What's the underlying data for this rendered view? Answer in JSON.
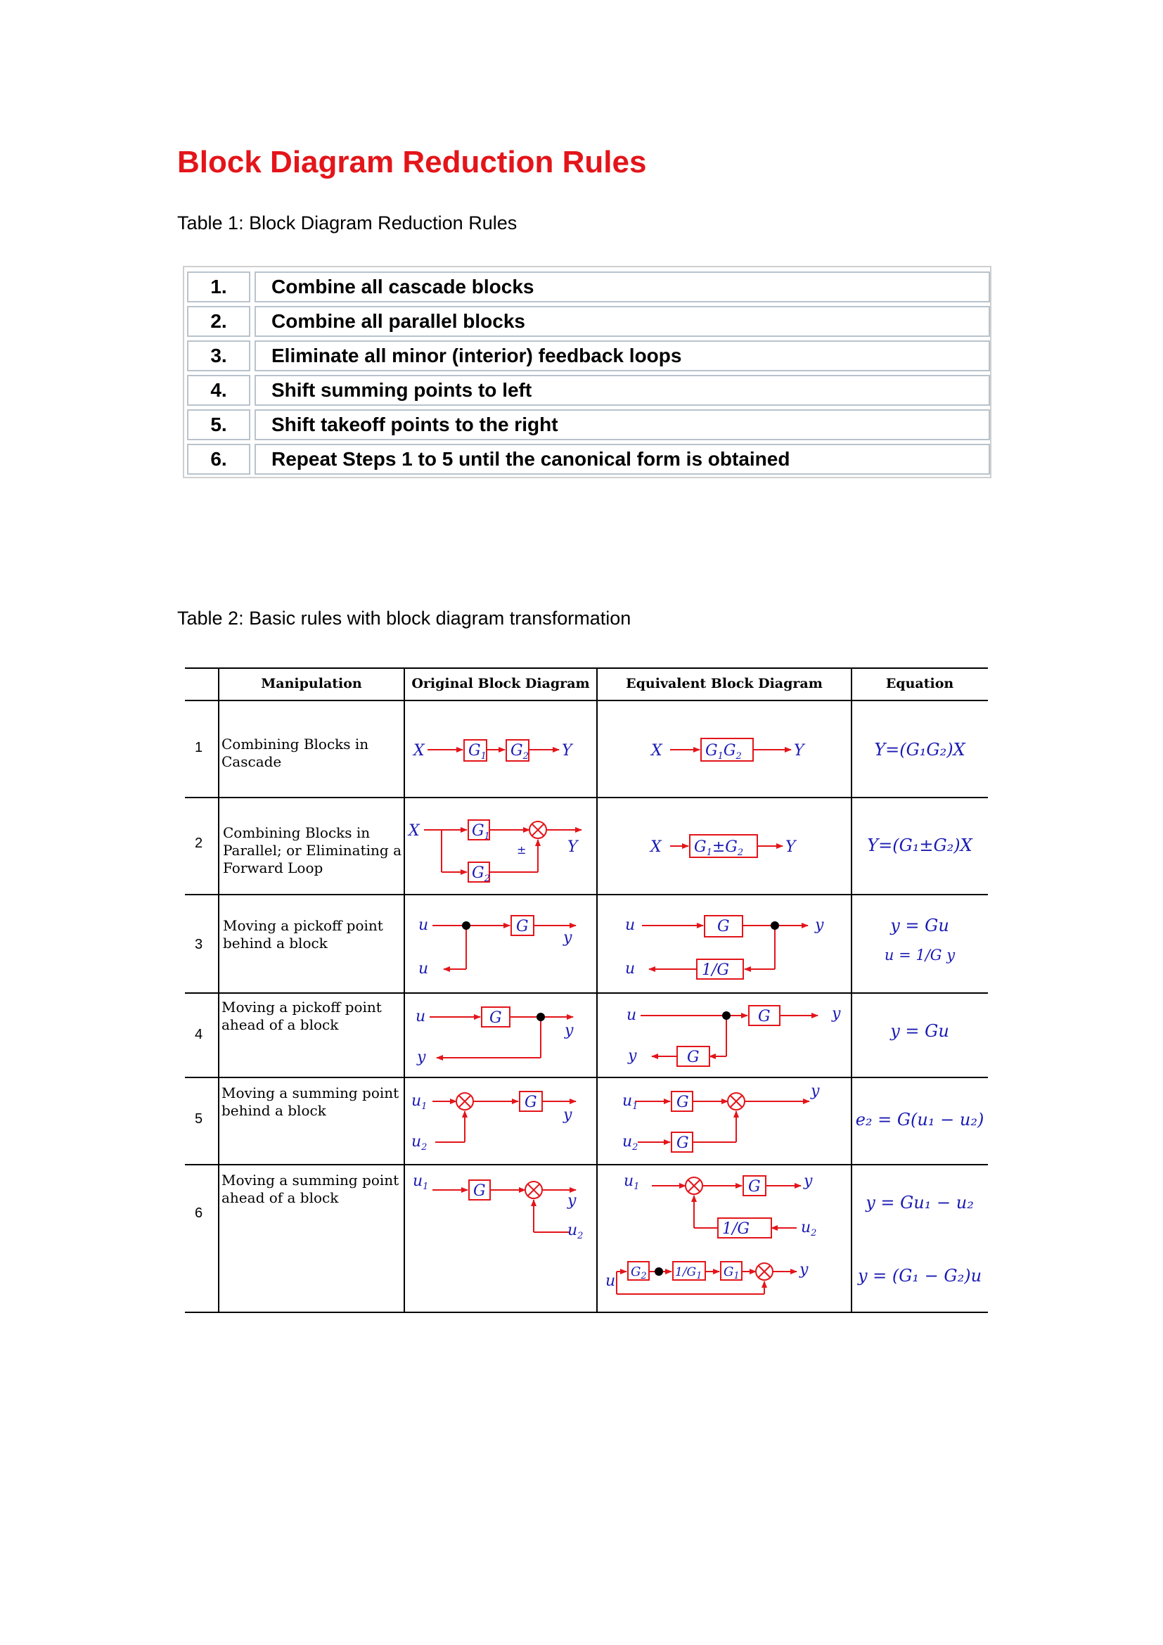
{
  "title": "Block Diagram Reduction Rules",
  "table1": {
    "caption": "Table 1: Block Diagram Reduction Rules",
    "rows": [
      {
        "num": "1.",
        "text": "Combine all cascade blocks"
      },
      {
        "num": "2.",
        "text": "Combine all parallel blocks"
      },
      {
        "num": "3.",
        "text": "Eliminate all minor (interior) feedback loops"
      },
      {
        "num": "4.",
        "text": "Shift summing points to left"
      },
      {
        "num": "5.",
        "text": "Shift takeoff points to the right"
      },
      {
        "num": "6.",
        "text": "Repeat Steps 1 to 5 until the canonical form is obtained"
      }
    ]
  },
  "table2": {
    "caption": "Table 2: Basic rules with block diagram transformation",
    "headers": [
      "Manipulation",
      "Original Block Diagram",
      "Equivalent Block Diagram",
      "Equation"
    ],
    "rows": [
      {
        "num": "1",
        "manipulation": "Combining Blocks in Cascade",
        "equation": "Y=(G₁G₂)X"
      },
      {
        "num": "2",
        "manipulation": "Combining Blocks in Parallel; or Eliminating a Forward Loop",
        "equation": "Y=(G₁±G₂)X"
      },
      {
        "num": "3",
        "manipulation": "Moving a pickoff point behind a block",
        "equation": "y = Gu"
      },
      {
        "num": "4",
        "manipulation": "Moving a pickoff point ahead of a block",
        "equation": "y = Gu"
      },
      {
        "num": "5",
        "manipulation": "Moving a summing point behind a block",
        "equation": "e₂ = G(u₁ − u₂)"
      },
      {
        "num": "6",
        "manipulation": "Moving a summing point ahead of a block",
        "equation": "y = Gu₁ − u₂",
        "equation2": "y = (G₁ − G₂)u"
      }
    ],
    "row3_equation2": "u = 1/G y",
    "colors": {
      "diagram_lines": "#e3151a",
      "diagram_text": "#1a1ab4",
      "title": "#e3151a"
    }
  }
}
